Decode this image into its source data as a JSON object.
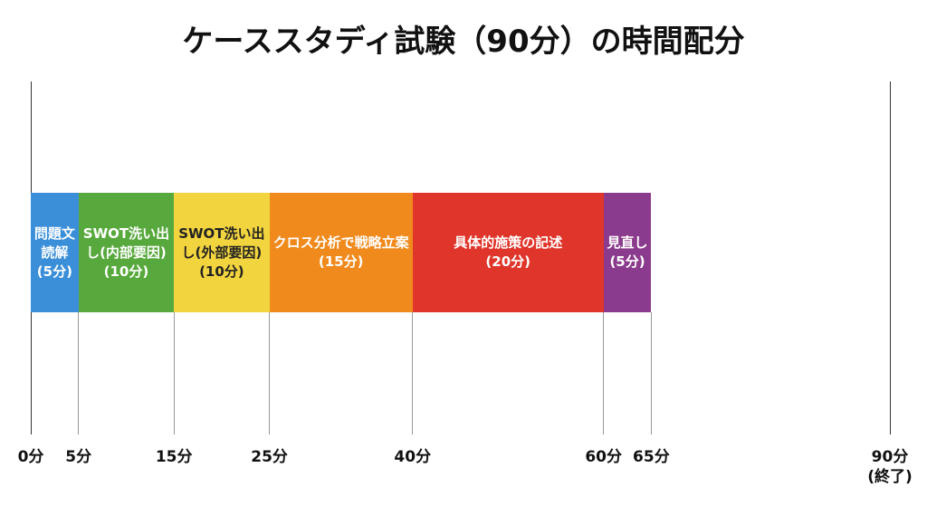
{
  "chart_data": {
    "type": "timeline",
    "title": "ケーススタディ試験（90分）の時間配分",
    "xlim": [
      0,
      90
    ],
    "xticks": [
      {
        "value": 0,
        "label": "0分"
      },
      {
        "value": 5,
        "label": "5分"
      },
      {
        "value": 15,
        "label": "15分"
      },
      {
        "value": 25,
        "label": "25分"
      },
      {
        "value": 40,
        "label": "40分"
      },
      {
        "value": 60,
        "label": "60分"
      },
      {
        "value": 65,
        "label": "65分"
      },
      {
        "value": 90,
        "label": "90分\n(終了)"
      }
    ],
    "series": [
      {
        "name": "問題文読解",
        "color": "#3b8fd9",
        "label_color": "#ffffff",
        "values": [
          5
        ],
        "value_labels": [
          "(5分)"
        ]
      },
      {
        "name": "SWOT洗い出し(内部要因)",
        "color": "#58a93d",
        "label_color": "#ffffff",
        "values": [
          10
        ],
        "value_labels": [
          "(10分)"
        ]
      },
      {
        "name": "SWOT洗い出し(外部要因)",
        "color": "#f2d43e",
        "label_color": "#222222",
        "values": [
          10
        ],
        "value_labels": [
          "(10分)"
        ]
      },
      {
        "name": "クロス分析で戦略立案",
        "color": "#f08a1d",
        "label_color": "#ffffff",
        "values": [
          15
        ],
        "value_labels": [
          "(15分)"
        ]
      },
      {
        "name": "具体的施策の記述",
        "color": "#e0352b",
        "label_color": "#ffffff",
        "values": [
          20
        ],
        "value_labels": [
          "(20分)"
        ]
      },
      {
        "name": "見直し",
        "color": "#8b3b8d",
        "label_color": "#ffffff",
        "values": [
          5
        ],
        "value_labels": [
          "(5分)"
        ]
      }
    ]
  }
}
